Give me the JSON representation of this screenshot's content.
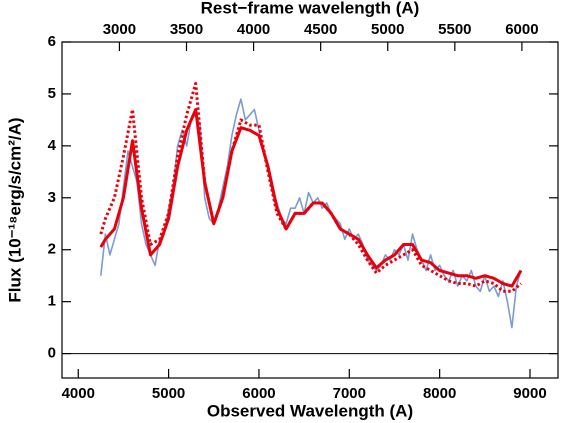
{
  "chart_data": {
    "type": "line",
    "xlabel": "Observed Wavelength (A)",
    "x2label": "Rest−frame wavelength (A)",
    "ylabel": "Flux (10⁻¹⁸erg/s/cm²/A)",
    "xlim": [
      3820,
      9310
    ],
    "xticks": [
      4000,
      5000,
      6000,
      7000,
      8000,
      9000
    ],
    "x2lim": [
      2572,
      6269
    ],
    "x2ticks": [
      3000,
      3500,
      4000,
      4500,
      5000,
      5500,
      6000
    ],
    "ylim": [
      -0.47,
      6.0
    ],
    "yticks": [
      0,
      1,
      2,
      3,
      4,
      5,
      6
    ],
    "hline": 0,
    "series": [
      {
        "color": "#7b9bd2",
        "style": "solid",
        "width": 1.6,
        "x": [
          4250,
          4300,
          4350,
          4400,
          4450,
          4500,
          4550,
          4600,
          4650,
          4700,
          4750,
          4800,
          4850,
          4900,
          4950,
          5000,
          5050,
          5100,
          5150,
          5200,
          5250,
          5300,
          5350,
          5400,
          5450,
          5500,
          5550,
          5600,
          5650,
          5700,
          5750,
          5800,
          5850,
          5900,
          5950,
          6000,
          6050,
          6100,
          6150,
          6200,
          6250,
          6300,
          6350,
          6400,
          6450,
          6500,
          6550,
          6600,
          6650,
          6700,
          6750,
          6800,
          6850,
          6900,
          6950,
          7000,
          7050,
          7100,
          7150,
          7200,
          7250,
          7300,
          7350,
          7400,
          7450,
          7500,
          7550,
          7600,
          7650,
          7700,
          7750,
          7800,
          7850,
          7900,
          7950,
          8000,
          8050,
          8100,
          8150,
          8200,
          8250,
          8300,
          8350,
          8400,
          8450,
          8500,
          8550,
          8600,
          8650,
          8700,
          8750,
          8800,
          8850,
          8900
        ],
        "values": [
          1.5,
          2.3,
          1.9,
          2.2,
          2.5,
          3.2,
          3.9,
          3.6,
          3.3,
          2.5,
          2.1,
          1.9,
          1.7,
          2.2,
          2.3,
          2.8,
          3.2,
          4.0,
          4.3,
          4.0,
          4.5,
          4.6,
          4.4,
          3.0,
          2.6,
          2.5,
          2.8,
          3.2,
          3.6,
          4.2,
          4.6,
          4.9,
          4.5,
          4.6,
          4.7,
          4.3,
          3.9,
          3.6,
          3.1,
          2.9,
          2.6,
          2.5,
          2.8,
          2.8,
          3.0,
          2.7,
          3.1,
          2.9,
          3.0,
          2.8,
          2.9,
          2.7,
          2.6,
          2.5,
          2.2,
          2.4,
          2.2,
          2.3,
          2.1,
          1.8,
          1.7,
          1.6,
          1.7,
          1.9,
          1.8,
          2.0,
          1.9,
          2.1,
          1.8,
          2.3,
          2.0,
          1.8,
          1.6,
          1.9,
          1.6,
          1.7,
          1.5,
          1.4,
          1.6,
          1.3,
          1.5,
          1.4,
          1.6,
          1.3,
          1.2,
          1.5,
          1.2,
          1.3,
          1.1,
          1.4,
          1.0,
          0.5,
          1.3,
          1.6
        ]
      },
      {
        "color": "#e8000b",
        "style": "solid",
        "width": 3,
        "x": [
          4250,
          4300,
          4400,
          4500,
          4600,
          4700,
          4800,
          4900,
          5000,
          5100,
          5200,
          5300,
          5400,
          5500,
          5600,
          5700,
          5800,
          5900,
          6000,
          6100,
          6200,
          6300,
          6400,
          6500,
          6600,
          6700,
          6800,
          6900,
          7000,
          7100,
          7200,
          7300,
          7400,
          7500,
          7600,
          7700,
          7800,
          7900,
          8000,
          8100,
          8200,
          8300,
          8400,
          8500,
          8600,
          8700,
          8800,
          8900
        ],
        "values": [
          2.05,
          2.2,
          2.4,
          3.0,
          4.1,
          2.8,
          1.9,
          2.1,
          2.6,
          3.6,
          4.3,
          4.7,
          3.3,
          2.5,
          3.0,
          3.9,
          4.35,
          4.3,
          4.2,
          3.6,
          2.8,
          2.4,
          2.7,
          2.7,
          2.9,
          2.9,
          2.7,
          2.4,
          2.3,
          2.2,
          1.9,
          1.65,
          1.8,
          1.9,
          2.1,
          2.1,
          1.8,
          1.75,
          1.6,
          1.55,
          1.5,
          1.5,
          1.45,
          1.5,
          1.45,
          1.35,
          1.3,
          1.6
        ]
      },
      {
        "color": "#e8000b",
        "style": "dotted",
        "width": 3,
        "x": [
          4250,
          4300,
          4400,
          4500,
          4600,
          4700,
          4800,
          4900,
          5000,
          5100,
          5200,
          5300,
          5400,
          5500,
          5600,
          5700,
          5800,
          5900,
          6000,
          6100,
          6200,
          6300,
          6400,
          6500,
          6600,
          6700,
          6800,
          6900,
          7000,
          7100,
          7200,
          7300,
          7400,
          7500,
          7600,
          7700,
          7800,
          7900,
          8000,
          8100,
          8200,
          8300,
          8400,
          8500,
          8600,
          8700,
          8800,
          8900
        ],
        "values": [
          2.3,
          2.6,
          3.0,
          3.8,
          4.7,
          3.0,
          2.1,
          2.2,
          2.7,
          3.8,
          4.6,
          5.2,
          3.3,
          2.5,
          3.0,
          3.9,
          4.5,
          4.4,
          4.4,
          3.5,
          2.7,
          2.4,
          2.7,
          2.7,
          2.9,
          2.9,
          2.7,
          2.4,
          2.3,
          2.1,
          1.8,
          1.55,
          1.7,
          1.8,
          1.9,
          2.0,
          1.7,
          1.6,
          1.5,
          1.4,
          1.35,
          1.35,
          1.3,
          1.4,
          1.35,
          1.2,
          1.2,
          1.35
        ]
      }
    ]
  }
}
